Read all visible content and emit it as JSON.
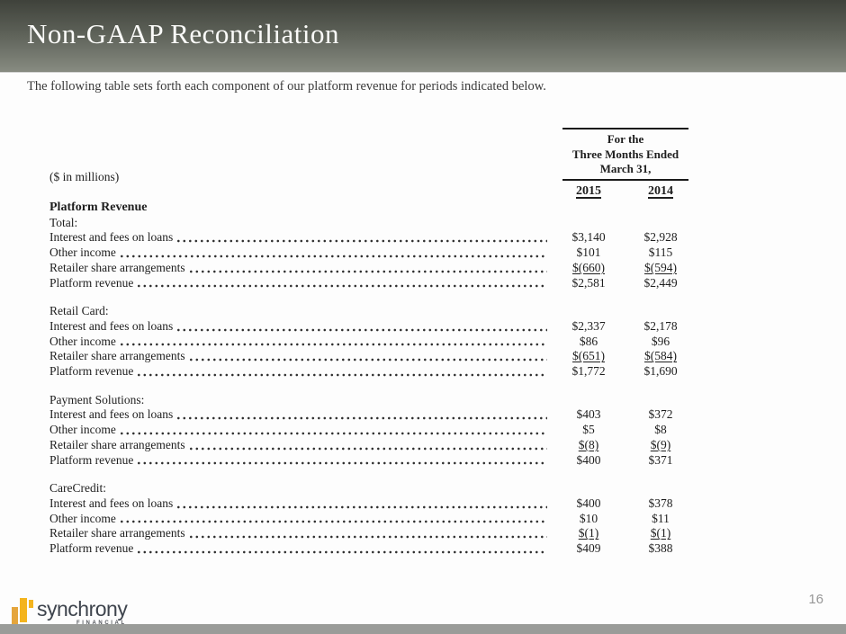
{
  "slide": {
    "title": "Non-GAAP Reconciliation",
    "intro": "The following table sets forth each component of our platform revenue for periods indicated below.",
    "page_number": "16"
  },
  "table": {
    "units_label": "($ in millions)",
    "period_header_lines": [
      "For the",
      "Three Months Ended",
      "March 31,"
    ],
    "years": [
      "2015",
      "2014"
    ],
    "group_title": "Platform Revenue",
    "sections": [
      {
        "name": "Total:",
        "rows": [
          {
            "label": "Interest and fees on loans",
            "v2015": "$3,140",
            "v2014": "$2,928",
            "underline": false
          },
          {
            "label": "Other income",
            "v2015": "$101",
            "v2014": "$115",
            "underline": false
          },
          {
            "label": "Retailer share arrangements",
            "v2015": "$(660)",
            "v2014": "$(594)",
            "underline": true
          },
          {
            "label": "Platform revenue",
            "v2015": "$2,581",
            "v2014": "$2,449",
            "underline": false
          }
        ]
      },
      {
        "name": "Retail Card:",
        "rows": [
          {
            "label": "Interest and fees on loans",
            "v2015": "$2,337",
            "v2014": "$2,178",
            "underline": false
          },
          {
            "label": "Other income",
            "v2015": "$86",
            "v2014": "$96",
            "underline": false
          },
          {
            "label": "Retailer share arrangements",
            "v2015": "$(651)",
            "v2014": "$(584)",
            "underline": true
          },
          {
            "label": "Platform revenue",
            "v2015": "$1,772",
            "v2014": "$1,690",
            "underline": false
          }
        ]
      },
      {
        "name": "Payment Solutions:",
        "rows": [
          {
            "label": "Interest and fees on loans",
            "v2015": "$403",
            "v2014": "$372",
            "underline": false
          },
          {
            "label": "Other income",
            "v2015": "$5",
            "v2014": "$8",
            "underline": false
          },
          {
            "label": "Retailer share arrangements",
            "v2015": "$(8)",
            "v2014": "$(9)",
            "underline": true
          },
          {
            "label": "Platform revenue",
            "v2015": "$400",
            "v2014": "$371",
            "underline": false
          }
        ]
      },
      {
        "name": "CareCredit:",
        "rows": [
          {
            "label": "Interest and fees on loans",
            "v2015": "$400",
            "v2014": "$378",
            "underline": false
          },
          {
            "label": "Other income",
            "v2015": "$10",
            "v2014": "$11",
            "underline": false
          },
          {
            "label": "Retailer share arrangements",
            "v2015": "$(1)",
            "v2014": "$(1)",
            "underline": true
          },
          {
            "label": "Platform revenue",
            "v2015": "$409",
            "v2014": "$388",
            "underline": false
          }
        ]
      }
    ]
  },
  "footer": {
    "brand": "synchrony",
    "brand_sub": "FINANCIAL"
  },
  "colors": {
    "header_gradient_top": "#3f423b",
    "header_gradient_bottom": "#878b81",
    "footer_bar": "#9a9c99",
    "logo_gold": "#f4b41d",
    "logo_gold_dark": "#e5a53c",
    "logo_text": "#3e444d"
  }
}
